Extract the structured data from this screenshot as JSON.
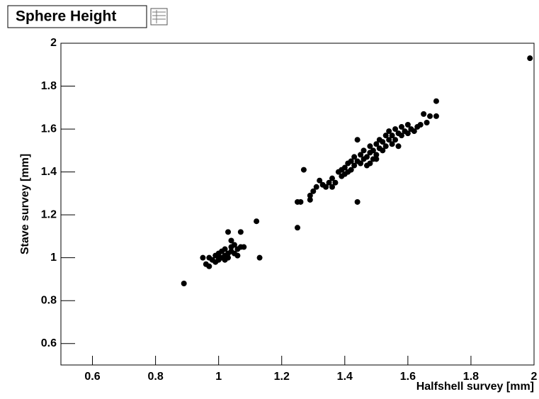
{
  "chart_data": {
    "type": "scatter",
    "title": "Sphere Height",
    "x_label": "Halfshell survey [mm]",
    "y_label": "Stave survey [mm]",
    "xlim": [
      0.5,
      2
    ],
    "ylim": [
      0.5,
      2
    ],
    "xticks": [
      0.6,
      0.8,
      1,
      1.2,
      1.4,
      1.6,
      1.8,
      2
    ],
    "yticks": [
      0.6,
      0.8,
      1,
      1.2,
      1.4,
      1.6,
      1.8,
      2
    ],
    "color": "#000000",
    "x": [
      0.89,
      1.987,
      0.95,
      0.96,
      0.97,
      0.97,
      0.98,
      0.99,
      1.0,
      1.0,
      1.01,
      1.01,
      1.02,
      1.02,
      1.03,
      1.03,
      1.03,
      1.04,
      1.04,
      1.05,
      1.05,
      1.06,
      1.06,
      1.07,
      1.07,
      1.08,
      1.04,
      1.12,
      1.13,
      0.99,
      1.0,
      1.02,
      1.25,
      1.25,
      1.26,
      1.27,
      1.29,
      1.29,
      1.3,
      1.31,
      1.32,
      1.33,
      1.34,
      1.35,
      1.36,
      1.36,
      1.37,
      1.38,
      1.39,
      1.39,
      1.4,
      1.4,
      1.41,
      1.41,
      1.42,
      1.42,
      1.43,
      1.43,
      1.44,
      1.44,
      1.44,
      1.45,
      1.45,
      1.46,
      1.46,
      1.47,
      1.47,
      1.48,
      1.48,
      1.49,
      1.49,
      1.5,
      1.5,
      1.51,
      1.51,
      1.52,
      1.52,
      1.53,
      1.53,
      1.54,
      1.54,
      1.55,
      1.55,
      1.56,
      1.56,
      1.57,
      1.57,
      1.58,
      1.58,
      1.59,
      1.6,
      1.6,
      1.61,
      1.62,
      1.63,
      1.64,
      1.65,
      1.66,
      1.67,
      1.69,
      1.69,
      1.5,
      1.48
    ],
    "values": [
      0.88,
      1.93,
      1.0,
      0.97,
      0.96,
      1.0,
      0.99,
      1.01,
      0.99,
      1.02,
      1.0,
      1.03,
      1.01,
      1.04,
      1.02,
      1.0,
      1.12,
      1.05,
      1.03,
      1.02,
      1.06,
      1.04,
      1.01,
      1.05,
      1.12,
      1.05,
      1.08,
      1.17,
      1.0,
      0.98,
      1.0,
      0.99,
      1.14,
      1.26,
      1.26,
      1.41,
      1.27,
      1.29,
      1.31,
      1.33,
      1.36,
      1.34,
      1.33,
      1.35,
      1.37,
      1.33,
      1.35,
      1.4,
      1.38,
      1.41,
      1.42,
      1.39,
      1.44,
      1.4,
      1.45,
      1.41,
      1.43,
      1.47,
      1.26,
      1.45,
      1.55,
      1.48,
      1.44,
      1.46,
      1.5,
      1.47,
      1.43,
      1.49,
      1.52,
      1.46,
      1.5,
      1.53,
      1.48,
      1.51,
      1.55,
      1.5,
      1.54,
      1.57,
      1.52,
      1.55,
      1.59,
      1.53,
      1.57,
      1.6,
      1.55,
      1.58,
      1.52,
      1.61,
      1.57,
      1.59,
      1.62,
      1.58,
      1.6,
      1.59,
      1.61,
      1.62,
      1.67,
      1.63,
      1.66,
      1.66,
      1.73,
      1.46,
      1.44
    ]
  }
}
